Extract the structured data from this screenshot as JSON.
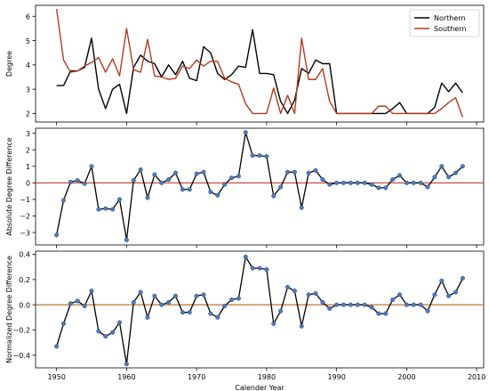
{
  "chart_data": [
    {
      "type": "line",
      "xlabel": "",
      "ylabel": "Degree",
      "xlim": [
        1947,
        2011
      ],
      "ylim": [
        1.65,
        6.45
      ],
      "x_ticks": [
        1950,
        1960,
        1970,
        1980,
        1990,
        2000,
        2010
      ],
      "y_ticks": [
        2,
        3,
        4,
        5,
        6
      ],
      "show_x_tick_labels": false,
      "legend": "top-right",
      "grid": false,
      "x": [
        1950,
        1951,
        1952,
        1953,
        1954,
        1955,
        1956,
        1957,
        1958,
        1959,
        1960,
        1961,
        1962,
        1963,
        1964,
        1965,
        1966,
        1967,
        1968,
        1969,
        1970,
        1971,
        1972,
        1973,
        1974,
        1975,
        1976,
        1977,
        1978,
        1979,
        1980,
        1981,
        1982,
        1983,
        1984,
        1985,
        1986,
        1987,
        1988,
        1989,
        1990,
        1991,
        1992,
        1993,
        1994,
        1995,
        1996,
        1997,
        1998,
        1999,
        2000,
        2001,
        2002,
        2003,
        2004,
        2005,
        2006,
        2007,
        2008
      ],
      "series": [
        {
          "name": "Northern",
          "color": "#000000",
          "values": [
            3.15,
            3.15,
            3.75,
            3.75,
            3.9,
            5.1,
            3.0,
            2.2,
            3.0,
            3.2,
            2.0,
            3.9,
            4.4,
            4.15,
            4.05,
            3.5,
            4.0,
            3.6,
            4.15,
            3.45,
            3.35,
            4.75,
            4.5,
            3.65,
            3.4,
            3.6,
            3.95,
            3.9,
            5.45,
            3.65,
            3.65,
            3.6,
            2.5,
            2.0,
            2.55,
            3.85,
            3.65,
            4.2,
            4.05,
            4.05,
            2.0,
            2.0,
            2.0,
            2.0,
            2.0,
            2.0,
            2.0,
            2.0,
            2.2,
            2.45,
            2.0,
            2.0,
            2.0,
            2.0,
            2.25,
            3.25,
            2.9,
            3.25,
            2.85
          ]
        },
        {
          "name": "Southern",
          "color": "#b23a1e",
          "values": [
            6.3,
            4.2,
            3.7,
            3.75,
            3.95,
            4.1,
            4.3,
            3.7,
            4.25,
            3.55,
            5.5,
            3.8,
            3.7,
            5.05,
            3.55,
            3.5,
            3.4,
            3.45,
            3.95,
            3.85,
            4.2,
            3.95,
            4.15,
            4.15,
            3.45,
            3.3,
            3.2,
            2.4,
            2.0,
            2.0,
            2.0,
            3.05,
            2.0,
            2.75,
            2.0,
            5.1,
            3.4,
            3.4,
            3.85,
            2.5,
            2.0,
            2.0,
            2.0,
            2.0,
            2.0,
            2.0,
            2.3,
            2.3,
            2.0,
            2.0,
            2.0,
            2.0,
            2.0,
            2.0,
            2.0,
            2.2,
            2.45,
            2.65,
            1.85
          ]
        }
      ]
    },
    {
      "type": "line",
      "xlabel": "",
      "ylabel": "Absolute Degree Difference",
      "xlim": [
        1947,
        2011
      ],
      "ylim": [
        -3.75,
        3.3
      ],
      "x_ticks": [
        1950,
        1960,
        1970,
        1980,
        1990,
        2000,
        2010
      ],
      "y_ticks": [
        -3,
        -2,
        -1,
        0,
        1,
        2,
        3
      ],
      "show_x_tick_labels": false,
      "reference_line": {
        "y": 0,
        "color": "#c0392b"
      },
      "marker_color": "#4a7cbf",
      "line_color": "#000000",
      "grid": false,
      "x": [
        1950,
        1951,
        1952,
        1953,
        1954,
        1955,
        1956,
        1957,
        1958,
        1959,
        1960,
        1961,
        1962,
        1963,
        1964,
        1965,
        1966,
        1967,
        1968,
        1969,
        1970,
        1971,
        1972,
        1973,
        1974,
        1975,
        1976,
        1977,
        1978,
        1979,
        1980,
        1981,
        1982,
        1983,
        1984,
        1985,
        1986,
        1987,
        1988,
        1989,
        1990,
        1991,
        1992,
        1993,
        1994,
        1995,
        1996,
        1997,
        1998,
        1999,
        2000,
        2001,
        2002,
        2003,
        2004,
        2005,
        2006,
        2007,
        2008
      ],
      "values": [
        -3.15,
        -1.05,
        0.05,
        0.15,
        -0.05,
        1.0,
        -1.6,
        -1.55,
        -1.6,
        -1.0,
        -3.45,
        0.15,
        0.8,
        -0.9,
        0.5,
        0.0,
        0.2,
        0.6,
        -0.4,
        -0.4,
        0.55,
        0.65,
        -0.55,
        -0.75,
        -0.1,
        0.3,
        0.4,
        3.05,
        1.65,
        1.65,
        1.6,
        -0.8,
        -0.25,
        0.65,
        0.65,
        -1.5,
        0.6,
        0.75,
        0.2,
        -0.1,
        0.0,
        0.0,
        0.0,
        0.0,
        0.0,
        -0.1,
        -0.3,
        -0.3,
        0.2,
        0.45,
        0.0,
        0.0,
        0.0,
        -0.25,
        0.35,
        1.0,
        0.35,
        0.6,
        1.0
      ]
    },
    {
      "type": "line",
      "xlabel": "Calender Year",
      "ylabel": "Normalized Degree Difference",
      "xlim": [
        1947,
        2011
      ],
      "ylim": [
        -0.5,
        0.425
      ],
      "x_ticks": [
        1950,
        1960,
        1970,
        1980,
        1990,
        2000,
        2010
      ],
      "y_ticks": [
        -0.4,
        -0.2,
        0.0,
        0.2,
        0.4
      ],
      "y_tick_labels": [
        "−0.4",
        "−0.2",
        "0.0",
        "0.2",
        "0.4"
      ],
      "x_tick_labels": [
        "1950",
        "1960",
        "1970",
        "1980",
        "1990",
        "2000",
        "2010"
      ],
      "reference_line": {
        "y": 0,
        "color": "#b5651d"
      },
      "marker_color": "#4a7cbf",
      "line_color": "#000000",
      "grid": false,
      "x": [
        1950,
        1951,
        1952,
        1953,
        1954,
        1955,
        1956,
        1957,
        1958,
        1959,
        1960,
        1961,
        1962,
        1963,
        1964,
        1965,
        1966,
        1967,
        1968,
        1969,
        1970,
        1971,
        1972,
        1973,
        1974,
        1975,
        1976,
        1977,
        1978,
        1979,
        1980,
        1981,
        1982,
        1983,
        1984,
        1985,
        1986,
        1987,
        1988,
        1989,
        1990,
        1991,
        1992,
        1993,
        1994,
        1995,
        1996,
        1997,
        1998,
        1999,
        2000,
        2001,
        2002,
        2003,
        2004,
        2005,
        2006,
        2007,
        2008
      ],
      "values": [
        -0.33,
        -0.15,
        0.01,
        0.03,
        -0.01,
        0.11,
        -0.21,
        -0.25,
        -0.22,
        -0.14,
        -0.47,
        0.02,
        0.1,
        -0.1,
        0.07,
        0.0,
        0.02,
        0.07,
        -0.06,
        -0.06,
        0.07,
        0.08,
        -0.07,
        -0.1,
        -0.01,
        0.04,
        0.05,
        0.38,
        0.29,
        0.29,
        0.28,
        -0.15,
        -0.05,
        0.14,
        0.11,
        -0.17,
        0.08,
        0.09,
        0.02,
        -0.03,
        0.0,
        0.0,
        0.0,
        0.0,
        0.0,
        -0.02,
        -0.07,
        -0.07,
        0.04,
        0.08,
        0.0,
        0.0,
        0.0,
        -0.05,
        0.08,
        0.19,
        0.07,
        0.1,
        0.21
      ]
    }
  ]
}
